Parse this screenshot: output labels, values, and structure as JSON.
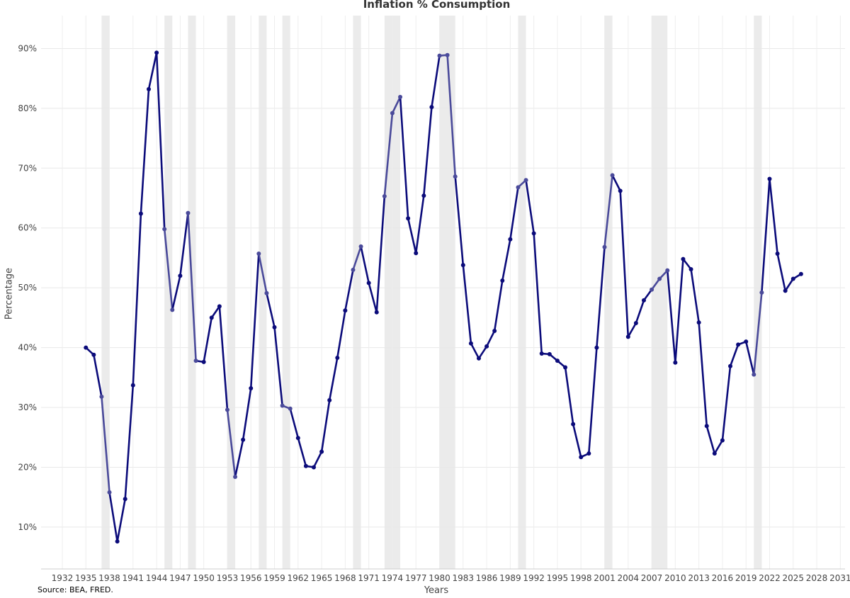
{
  "chart_data": {
    "type": "line",
    "title": "Inflation % Consumption",
    "xlabel": "Years",
    "ylabel": "Percentage",
    "source": "Source: BEA, FRED.",
    "xlim": [
      1929.3,
      1931.6
    ],
    "xlim_note": "",
    "x_range": [
      1929.3,
      2031.6
    ],
    "y_range": [
      3.0,
      95.5
    ],
    "x_ticks": [
      "1932",
      "1935",
      "1938",
      "1941",
      "1944",
      "1947",
      "1950",
      "1953",
      "1956",
      "1959",
      "1962",
      "1965",
      "1968",
      "1971",
      "1974",
      "1977",
      "1980",
      "1983",
      "1986",
      "1989",
      "1992",
      "1995",
      "1998",
      "2001",
      "2004",
      "2007",
      "2010",
      "2013",
      "2016",
      "2019",
      "2022",
      "2025",
      "2028",
      "2031"
    ],
    "y_ticks": [
      "10%",
      "20%",
      "30%",
      "40%",
      "50%",
      "60%",
      "70%",
      "80%",
      "90%"
    ],
    "grid": true,
    "recessions": [
      [
        1937,
        1938
      ],
      [
        1945,
        1946
      ],
      [
        1948,
        1949
      ],
      [
        1953,
        1954
      ],
      [
        1957,
        1958
      ],
      [
        1960,
        1961
      ],
      [
        1969,
        1970
      ],
      [
        1973,
        1975
      ],
      [
        1980,
        1982
      ],
      [
        1990,
        1991
      ],
      [
        2001,
        2002
      ],
      [
        2007,
        2009
      ],
      [
        2020,
        2021
      ]
    ],
    "series": [
      {
        "name": "",
        "color": "#0b0b7a",
        "recession_color": "#4a4a9a",
        "x": [
          1935,
          1936,
          1937,
          1938,
          1939,
          1940,
          1941,
          1942,
          1943,
          1944,
          1945,
          1946,
          1947,
          1948,
          1949,
          1950,
          1951,
          1952,
          1953,
          1954,
          1955,
          1956,
          1957,
          1958,
          1959,
          1960,
          1961,
          1962,
          1963,
          1964,
          1965,
          1966,
          1967,
          1968,
          1969,
          1970,
          1971,
          1972,
          1973,
          1974,
          1975,
          1976,
          1977,
          1978,
          1979,
          1980,
          1981,
          1982,
          1983,
          1984,
          1985,
          1986,
          1987,
          1988,
          1989,
          1990,
          1991,
          1992,
          1993,
          1994,
          1995,
          1996,
          1997,
          1998,
          1999,
          2000,
          2001,
          2002,
          2003,
          2004,
          2005,
          2006,
          2007,
          2008,
          2009,
          2010,
          2011,
          2012,
          2013,
          2014,
          2015,
          2016,
          2017,
          2018,
          2019,
          2020,
          2021,
          2022,
          2023,
          2024,
          2025,
          2026
        ],
        "values": [
          40.0,
          38.8,
          31.8,
          15.8,
          7.6,
          14.7,
          33.7,
          62.4,
          83.2,
          89.3,
          59.8,
          46.3,
          52.0,
          62.5,
          37.8,
          37.6,
          45.0,
          46.9,
          29.6,
          18.4,
          24.6,
          33.2,
          55.7,
          49.1,
          43.4,
          30.3,
          29.8,
          24.9,
          20.2,
          20.0,
          22.6,
          31.2,
          38.3,
          46.2,
          53.0,
          56.9,
          50.8,
          45.9,
          65.3,
          79.2,
          81.9,
          61.6,
          55.8,
          65.4,
          80.2,
          88.8,
          88.9,
          68.6,
          53.8,
          40.7,
          38.2,
          40.2,
          42.8,
          51.2,
          58.1,
          66.8,
          68.0,
          59.1,
          39.0,
          38.9,
          37.8,
          36.7,
          27.2,
          21.7,
          22.3,
          40.0,
          56.8,
          68.8,
          66.2,
          41.8,
          44.1,
          47.9,
          49.7,
          51.5,
          52.9,
          37.5,
          54.8,
          53.1,
          44.2,
          26.9,
          22.3,
          24.5,
          36.9,
          40.5,
          41.0,
          35.5,
          49.2,
          68.2,
          55.7,
          49.5,
          51.5,
          52.3
        ]
      }
    ]
  }
}
